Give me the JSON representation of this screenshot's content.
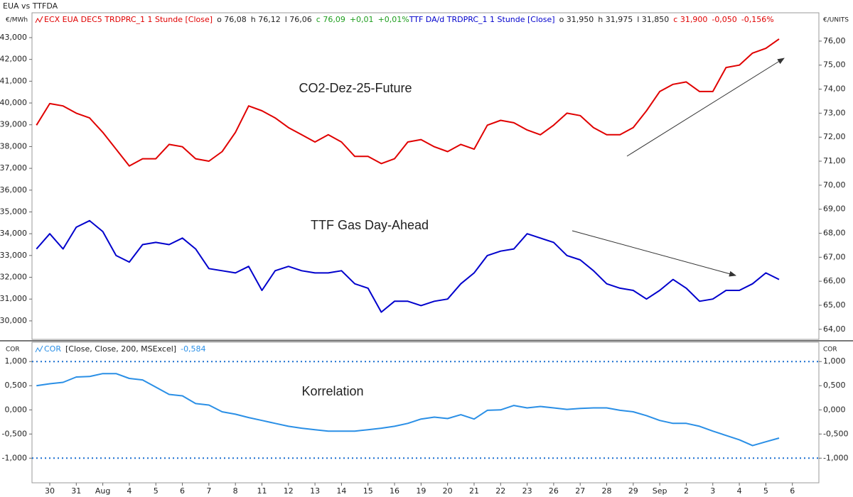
{
  "title": "EUA vs TTFDA",
  "chart_data": [
    {
      "type": "line",
      "y_label": "€/MWh",
      "y2_label": "€/UNITS",
      "xlim": [
        -0.67,
        29
      ],
      "ylim": [
        29.15,
        44.14
      ],
      "yticks": [
        {
          "value": 30,
          "label": "30,000"
        },
        {
          "value": 31,
          "label": "31,000"
        },
        {
          "value": 32,
          "label": "32,000"
        },
        {
          "value": 33,
          "label": "33,000"
        },
        {
          "value": 34,
          "label": "34,000"
        },
        {
          "value": 35,
          "label": "35,000"
        },
        {
          "value": 36,
          "label": "36,000"
        },
        {
          "value": 37,
          "label": "37,000"
        },
        {
          "value": 38,
          "label": "38,000"
        },
        {
          "value": 39,
          "label": "39,000"
        },
        {
          "value": 40,
          "label": "40,000"
        },
        {
          "value": 41,
          "label": "41,000"
        },
        {
          "value": 42,
          "label": "42,000"
        },
        {
          "value": 43,
          "label": "43,000"
        }
      ],
      "y2lim": [
        63.58,
        77.18
      ],
      "y2ticks": [
        {
          "value": 64,
          "label": "64,00"
        },
        {
          "value": 65,
          "label": "65,00"
        },
        {
          "value": 66,
          "label": "66,00"
        },
        {
          "value": 67,
          "label": "67,00"
        },
        {
          "value": 68,
          "label": "68,00"
        },
        {
          "value": 69,
          "label": "69,00"
        },
        {
          "value": 70,
          "label": "70,00"
        },
        {
          "value": 71,
          "label": "71,00"
        },
        {
          "value": 72,
          "label": "72,00"
        },
        {
          "value": 73,
          "label": "73,00"
        },
        {
          "value": 74,
          "label": "74,00"
        },
        {
          "value": 75,
          "label": "75,00"
        },
        {
          "value": 76,
          "label": "76,00"
        }
      ],
      "x": [
        -0.5,
        0,
        0.5,
        1,
        1.5,
        2,
        2.5,
        3,
        3.5,
        4,
        4.5,
        5,
        5.5,
        6,
        6.5,
        7,
        7.5,
        8,
        8.5,
        9,
        9.5,
        10,
        10.5,
        11,
        11.5,
        12,
        12.5,
        13,
        13.5,
        14,
        14.5,
        15,
        15.5,
        16,
        16.5,
        17,
        17.5,
        18,
        18.5,
        19,
        19.5,
        20,
        20.5,
        21,
        21.5,
        22,
        22.5,
        23,
        23.5,
        24,
        24.5,
        25,
        25.5,
        26,
        26.5,
        27,
        27.5
      ],
      "series": [
        {
          "name": "ECX EUA DEC5 TRDPRC_1 1 Stunde [Close]",
          "color": "#e00000",
          "axis": "y2",
          "stats": [
            "o 76,08",
            "h 76,12",
            "l 76,06"
          ],
          "close_stats": [
            "c 76,09",
            "+0,01",
            "+0,01%"
          ],
          "close_color": "#1e9e1e",
          "values": [
            72.5,
            73.4,
            73.3,
            73.0,
            72.8,
            72.2,
            71.5,
            70.8,
            71.1,
            71.1,
            71.7,
            71.6,
            71.1,
            71.0,
            71.4,
            72.2,
            73.3,
            73.1,
            72.8,
            72.4,
            72.1,
            71.8,
            72.1,
            71.8,
            71.2,
            71.2,
            70.9,
            71.1,
            71.8,
            71.9,
            71.6,
            71.4,
            71.7,
            71.5,
            72.5,
            72.7,
            72.6,
            72.3,
            72.1,
            72.5,
            73.0,
            72.9,
            72.4,
            72.1,
            72.1,
            72.4,
            73.1,
            73.9,
            74.2,
            74.3,
            73.9,
            73.9,
            74.9,
            75.0,
            75.5,
            75.7,
            76.09
          ]
        },
        {
          "name": "TTF DA/d TRDPRC_1 1 Stunde [Close]",
          "color": "#0000cc",
          "stats": [
            "o 31,950",
            "h 31,975",
            "l 31,850"
          ],
          "close_stats": [
            "c 31,900",
            "-0,050",
            "-0,156%"
          ],
          "close_color": "#e00000",
          "values": [
            33.3,
            34.0,
            33.3,
            34.3,
            34.6,
            34.1,
            33.0,
            32.7,
            33.5,
            33.6,
            33.5,
            33.8,
            33.3,
            32.4,
            32.3,
            32.2,
            32.5,
            31.4,
            32.3,
            32.5,
            32.3,
            32.2,
            32.2,
            32.3,
            31.7,
            31.5,
            30.4,
            30.9,
            30.9,
            30.7,
            30.9,
            31.0,
            31.7,
            32.2,
            33.0,
            33.2,
            33.3,
            34.0,
            33.8,
            33.6,
            33.0,
            32.8,
            32.3,
            31.7,
            31.5,
            31.4,
            31.0,
            31.4,
            31.9,
            31.5,
            30.9,
            31.0,
            31.4,
            31.4,
            31.7,
            32.2,
            31.9
          ]
        }
      ],
      "annotations": [
        {
          "text": "CO2-Dez-25-Future",
          "color": "#e00000"
        },
        {
          "text": "TTF Gas Day-Ahead",
          "color": "#0000cc"
        }
      ]
    },
    {
      "type": "line",
      "y_label": "COR",
      "y2_label": "COR",
      "xlim": [
        -0.67,
        29
      ],
      "ylim": [
        -1.51,
        1.4
      ],
      "yticks": [
        {
          "value": -1,
          "label": "-1,000"
        },
        {
          "value": -0.5,
          "label": "-0,500"
        },
        {
          "value": 0,
          "label": "0,000"
        },
        {
          "value": 0.5,
          "label": "0,500"
        },
        {
          "value": 1,
          "label": "1,000"
        }
      ],
      "reference_lines": [
        1,
        -1
      ],
      "reference_color": "#1a6fd0",
      "xticks": [
        {
          "value": 0,
          "label": "30"
        },
        {
          "value": 1,
          "label": "31"
        },
        {
          "value": 2,
          "label": "Aug"
        },
        {
          "value": 3,
          "label": "4"
        },
        {
          "value": 4,
          "label": "5"
        },
        {
          "value": 5,
          "label": "6"
        },
        {
          "value": 6,
          "label": "7"
        },
        {
          "value": 7,
          "label": "8"
        },
        {
          "value": 8,
          "label": "11"
        },
        {
          "value": 9,
          "label": "12"
        },
        {
          "value": 10,
          "label": "13"
        },
        {
          "value": 11,
          "label": "14"
        },
        {
          "value": 12,
          "label": "15"
        },
        {
          "value": 13,
          "label": "16"
        },
        {
          "value": 14,
          "label": "19"
        },
        {
          "value": 15,
          "label": "20"
        },
        {
          "value": 16,
          "label": "21"
        },
        {
          "value": 17,
          "label": "22"
        },
        {
          "value": 18,
          "label": "23"
        },
        {
          "value": 19,
          "label": "26"
        },
        {
          "value": 20,
          "label": "27"
        },
        {
          "value": 21,
          "label": "28"
        },
        {
          "value": 22,
          "label": "29"
        },
        {
          "value": 23,
          "label": "Sep"
        },
        {
          "value": 24,
          "label": "2"
        },
        {
          "value": 25,
          "label": "3"
        },
        {
          "value": 26,
          "label": "4"
        },
        {
          "value": 27,
          "label": "5"
        },
        {
          "value": 28,
          "label": "6"
        }
      ],
      "x": [
        -0.5,
        0,
        0.5,
        1,
        1.5,
        2,
        2.5,
        3,
        3.5,
        4,
        4.5,
        5,
        5.5,
        6,
        6.5,
        7,
        7.5,
        8,
        8.5,
        9,
        9.5,
        10,
        10.5,
        11,
        11.5,
        12,
        12.5,
        13,
        13.5,
        14,
        14.5,
        15,
        15.5,
        16,
        16.5,
        17,
        17.5,
        18,
        18.5,
        19,
        19.5,
        20,
        20.5,
        21,
        21.5,
        22,
        22.5,
        23,
        23.5,
        24,
        24.5,
        25,
        25.5,
        26,
        26.5,
        27,
        27.5
      ],
      "series": [
        {
          "name": "COR",
          "params": "[Close, Close, 200, MSExcel]",
          "last_label": "-0,584",
          "color": "#2a8fe6",
          "values": [
            0.5,
            0.54,
            0.57,
            0.68,
            0.69,
            0.75,
            0.75,
            0.65,
            0.62,
            0.47,
            0.32,
            0.29,
            0.13,
            0.1,
            -0.04,
            -0.09,
            -0.16,
            -0.22,
            -0.28,
            -0.34,
            -0.38,
            -0.41,
            -0.44,
            -0.44,
            -0.44,
            -0.41,
            -0.38,
            -0.34,
            -0.28,
            -0.19,
            -0.15,
            -0.18,
            -0.1,
            -0.19,
            -0.01,
            0.0,
            0.09,
            0.04,
            0.07,
            0.04,
            0.01,
            0.03,
            0.04,
            0.04,
            -0.01,
            -0.04,
            -0.12,
            -0.22,
            -0.28,
            -0.28,
            -0.34,
            -0.44,
            -0.53,
            -0.62,
            -0.74,
            -0.66,
            -0.584
          ]
        }
      ],
      "annotations": [
        {
          "text": "Korrelation",
          "color": "#0000cc"
        }
      ]
    }
  ]
}
